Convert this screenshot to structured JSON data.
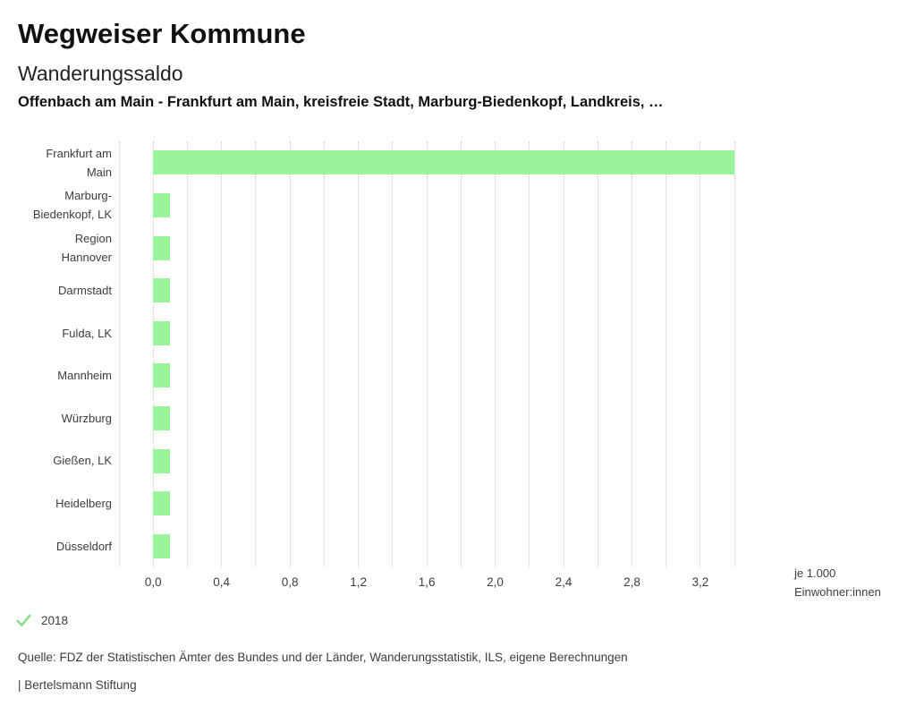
{
  "header": {
    "title": "Wegweiser Kommune",
    "subtitle": "Wanderungssaldo",
    "comparison": "Offenbach am Main - Frankfurt am Main, kreisfreie Stadt, Marburg-Biedenkopf, Landkreis, …"
  },
  "chart_data": {
    "type": "bar",
    "orientation": "horizontal",
    "title": "Wanderungssaldo",
    "categories": [
      "Frankfurt am Main",
      "Marburg-Biedenkopf, LK",
      "Region Hannover",
      "Darmstadt",
      "Fulda, LK",
      "Mannheim",
      "Würzburg",
      "Gießen, LK",
      "Heidelberg",
      "Düsseldorf"
    ],
    "series": [
      {
        "name": "2018",
        "values": [
          3.4,
          0.1,
          0.1,
          0.1,
          0.1,
          0.1,
          0.1,
          0.1,
          0.1,
          0.1
        ]
      }
    ],
    "xlabel": "je 1.000 Einwohner:innen",
    "xlabel_lines": [
      "je 1.000",
      "Einwohner:innen"
    ],
    "x_ticks": [
      {
        "label": "0,0",
        "value": 0.0
      },
      {
        "label": "0,4",
        "value": 0.4
      },
      {
        "label": "0,8",
        "value": 0.8
      },
      {
        "label": "1,2",
        "value": 1.2
      },
      {
        "label": "1,6",
        "value": 1.6
      },
      {
        "label": "2,0",
        "value": 2.0
      },
      {
        "label": "2,4",
        "value": 2.4
      },
      {
        "label": "2,8",
        "value": 2.8
      },
      {
        "label": "3,2",
        "value": 3.2
      }
    ],
    "xlim": [
      -0.2,
      3.42
    ],
    "gridline_step": 0.2,
    "grid": "dotted-vertical",
    "legend_position": "bottom-left",
    "bar_color": "#9af59a"
  },
  "legend": {
    "year_label": "2018",
    "check_color": "#8adf8a"
  },
  "footer": {
    "source": "Quelle: FDZ der Statistischen Ämter des Bundes und der Länder, Wanderungsstatistik, ILS, eigene Berechnungen",
    "branding": "| Bertelsmann Stiftung"
  },
  "colors": {
    "bar_green": "#9af59a",
    "check_green": "#8adf8a",
    "gridline_gray": "#cdcdcd",
    "text_gray": "#3d3d3d",
    "title_black": "#111111"
  }
}
